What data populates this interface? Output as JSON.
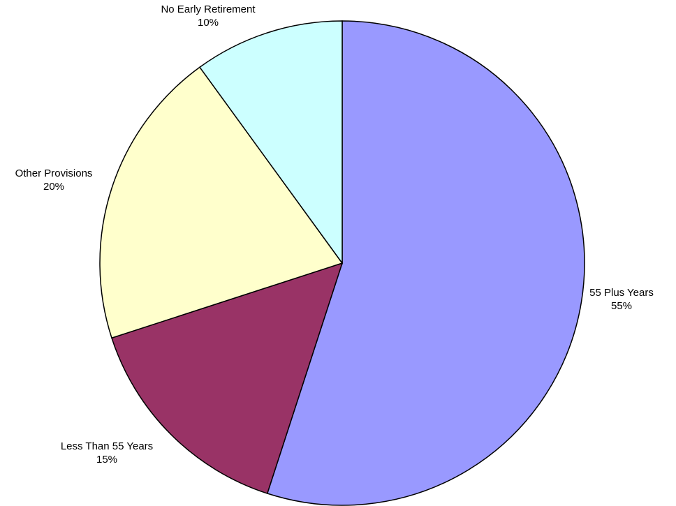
{
  "chart_data": {
    "type": "pie",
    "title": "",
    "slices": [
      {
        "label": "55 Plus Years",
        "value": 55,
        "percent_label": "55%",
        "color": "#9999FF"
      },
      {
        "label": "Less Than 55 Years",
        "value": 15,
        "percent_label": "15%",
        "color": "#993366"
      },
      {
        "label": "Other Provisions",
        "value": 20,
        "percent_label": "20%",
        "color": "#FFFFCC"
      },
      {
        "label": "No Early Retirement",
        "value": 10,
        "percent_label": "10%",
        "color": "#CCFFFF"
      }
    ],
    "start_angle_deg": 0,
    "direction": "clockwise",
    "legend": "none",
    "data_labels": "outside"
  }
}
